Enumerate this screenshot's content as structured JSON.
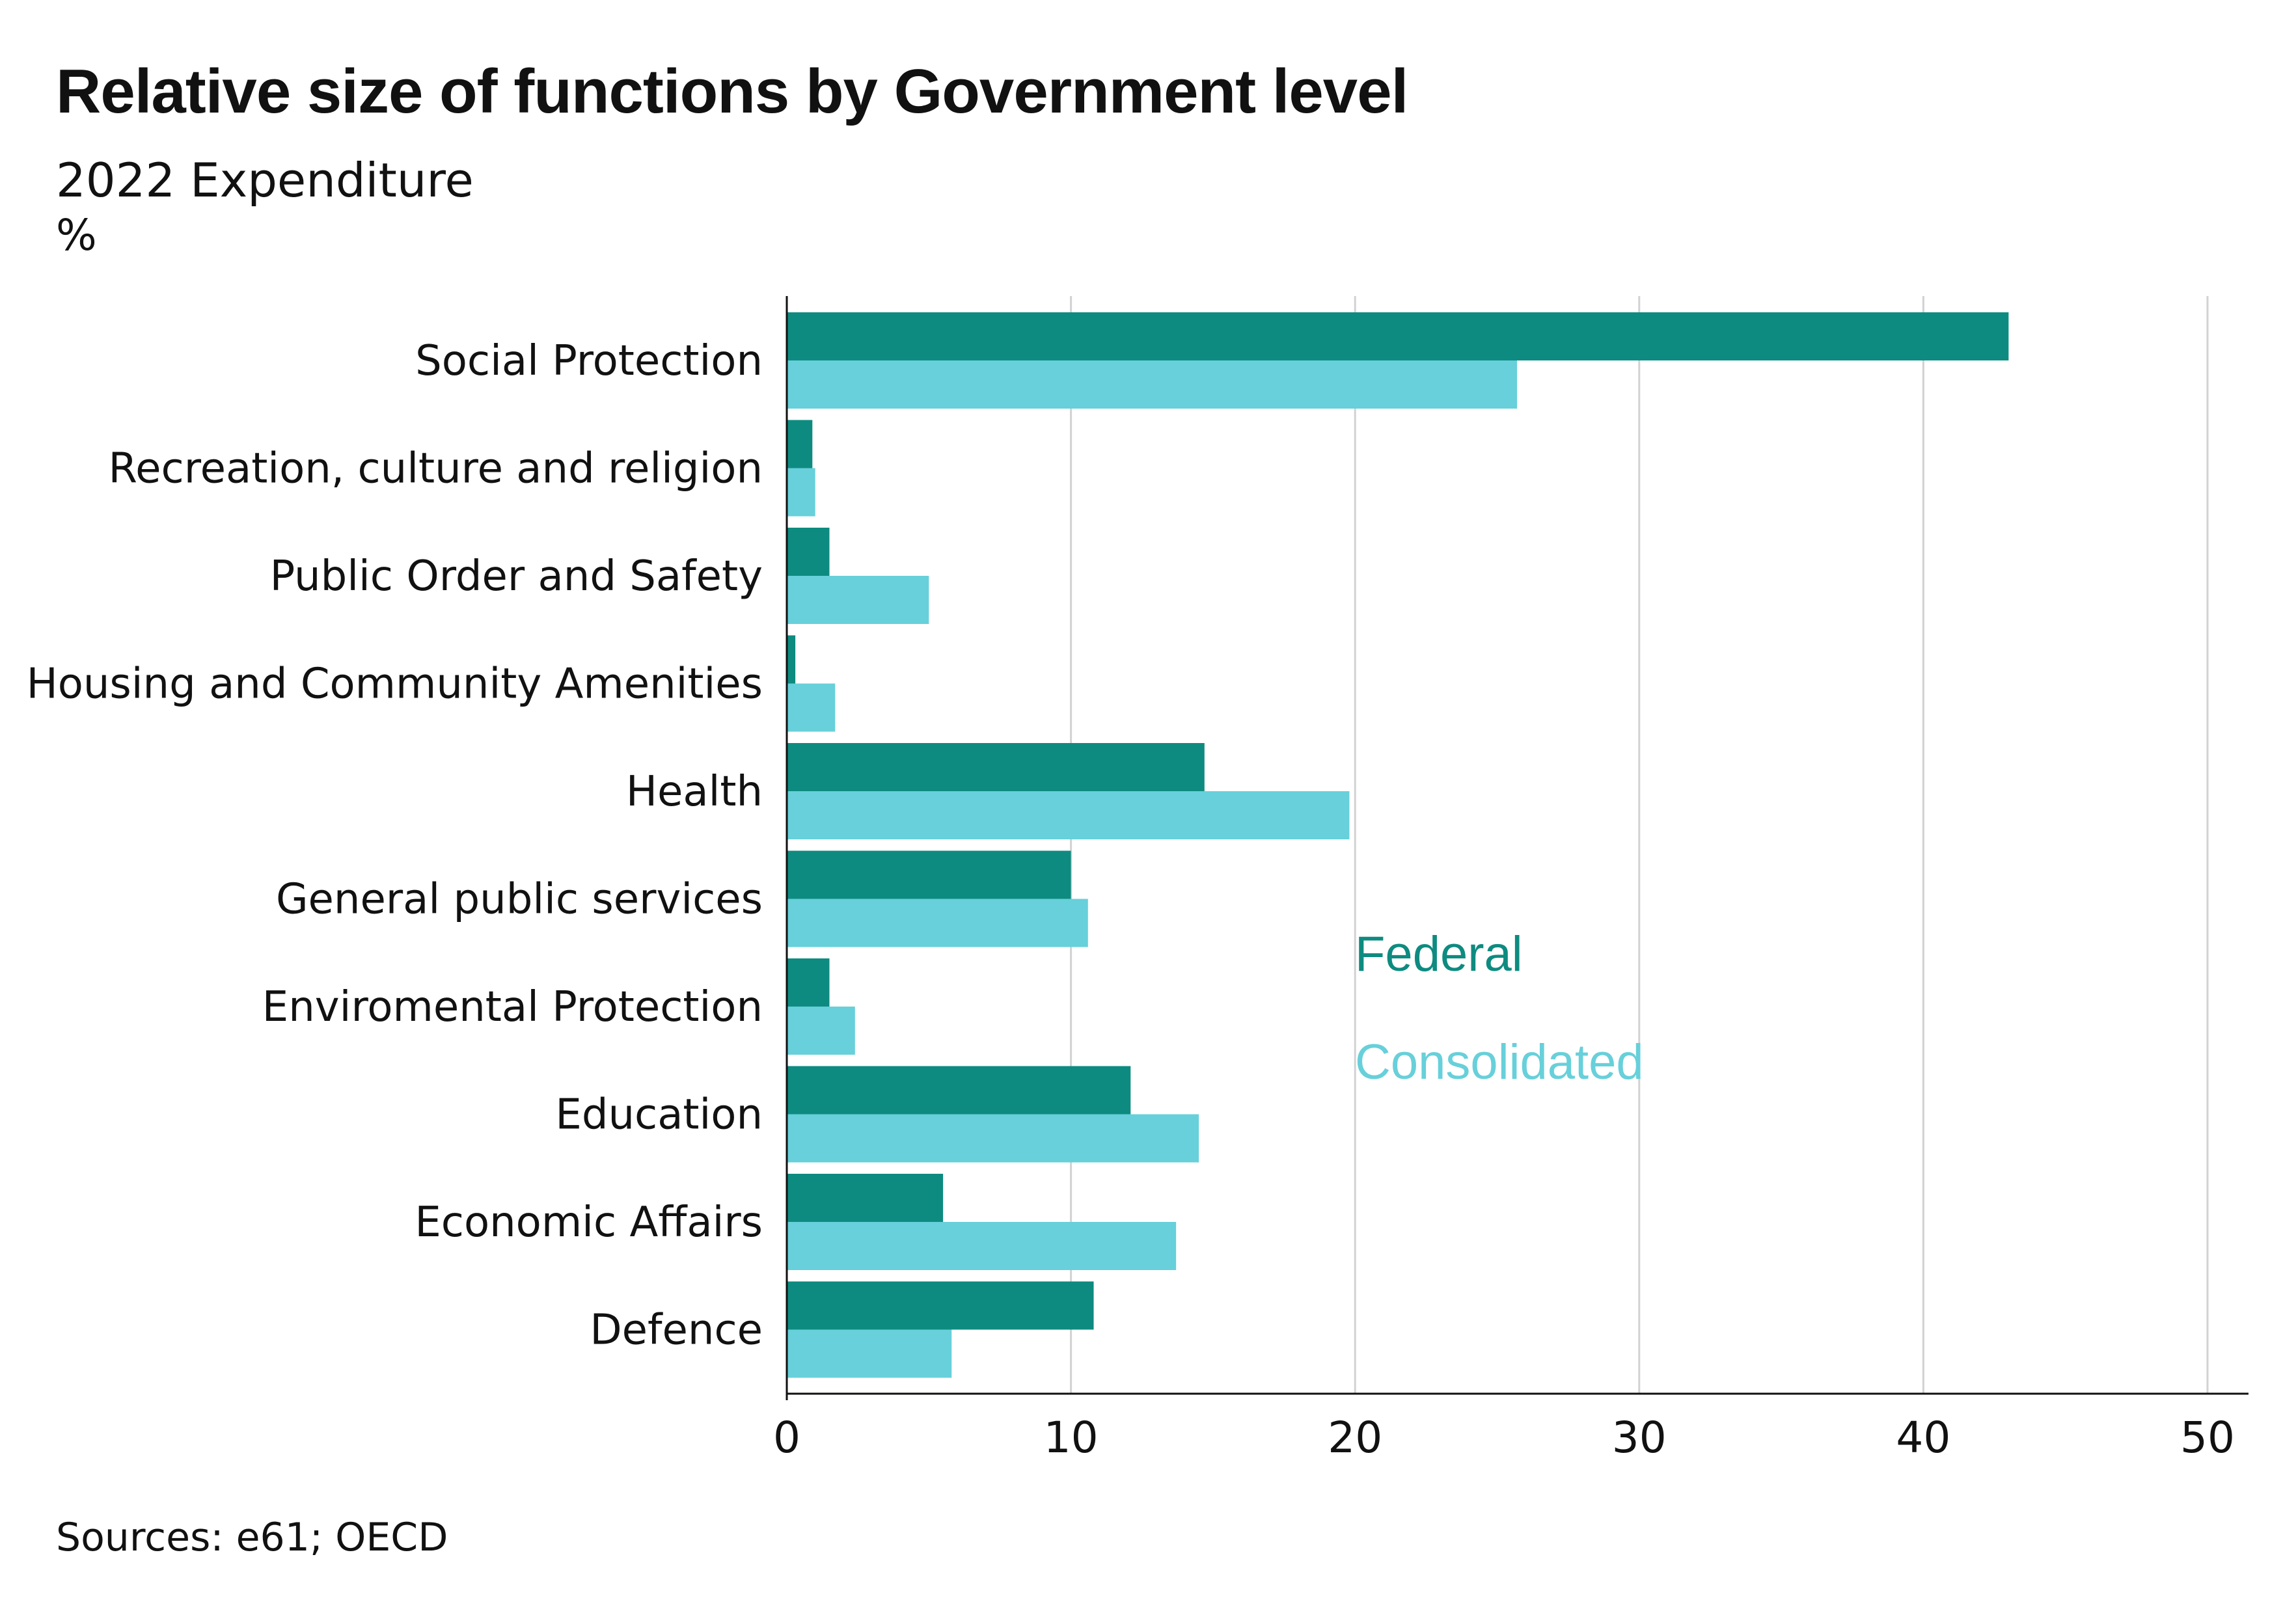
{
  "header": {
    "title": "Relative size of functions by Government level",
    "subtitle": "2022 Expenditure",
    "unit": "%"
  },
  "footer": {
    "source": "Sources: e61; OECD"
  },
  "colors": {
    "federal": "#0e8b80",
    "consolidated": "#67d0da",
    "grid": "#d2d2d2",
    "axis": "#111111"
  },
  "chart_data": {
    "type": "bar",
    "orientation": "horizontal",
    "title": "Relative size of functions by Government level",
    "subtitle": "2022 Expenditure",
    "ylabel": "%",
    "categories": [
      "Social Protection",
      "Recreation, culture and religion",
      "Public Order and Safety",
      "Housing and Community Amenities",
      "Health",
      "General public services",
      "Enviromental Protection",
      "Education",
      "Economic Affairs",
      "Defence"
    ],
    "series": [
      {
        "name": "Federal",
        "values": [
          43.0,
          0.9,
          1.5,
          0.3,
          14.7,
          10.0,
          1.5,
          12.1,
          5.5,
          10.8
        ]
      },
      {
        "name": "Consolidated",
        "values": [
          25.7,
          1.0,
          5.0,
          1.7,
          19.8,
          10.6,
          2.4,
          14.5,
          13.7,
          5.8
        ]
      }
    ],
    "xlim": [
      0,
      50
    ],
    "xticks": [
      0,
      10,
      20,
      30,
      40,
      50
    ],
    "grid": true,
    "legend_placement": "center-right"
  }
}
